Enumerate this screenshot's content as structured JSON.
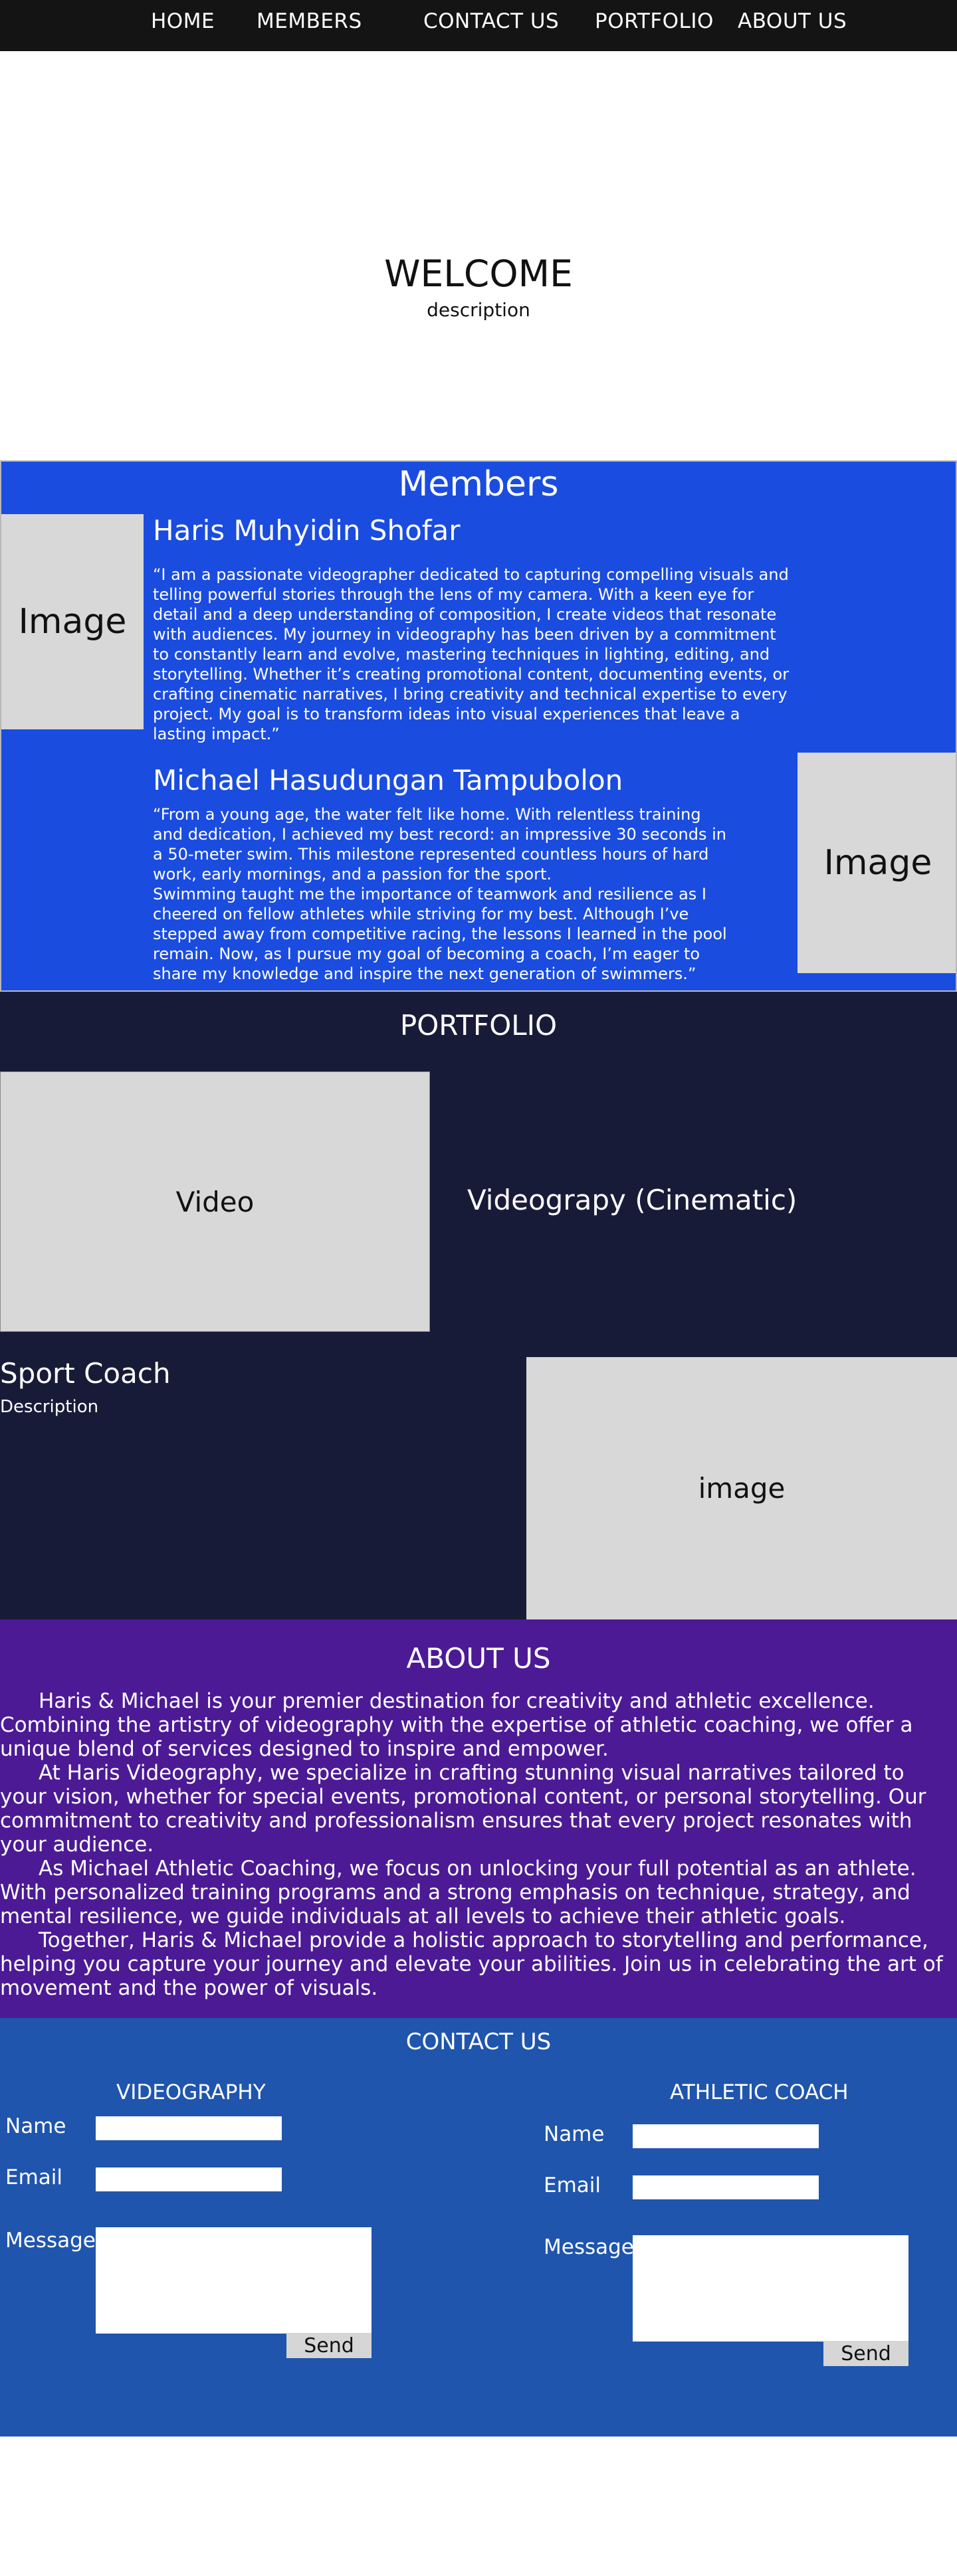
{
  "nav": {
    "items": [
      {
        "label": "HOME"
      },
      {
        "label": "MEMBERS"
      },
      {
        "label": "CONTACT US"
      },
      {
        "label": "PORTFOLIO"
      },
      {
        "label": "ABOUT US"
      }
    ]
  },
  "hero": {
    "title": "WELCOME",
    "description": "description"
  },
  "members": {
    "title": "Members",
    "list": [
      {
        "image_label": "Image",
        "name": "Haris Muhyidin Shofar",
        "bio": "“I am a passionate videographer dedicated to capturing compelling visuals and telling powerful stories through the lens of my camera. With a keen eye for detail and a deep understanding of composition, I create videos that resonate with audiences. My journey in videography has been driven by a commitment to constantly learn and evolve, mastering techniques in lighting, editing, and storytelling. Whether it’s creating promotional content, documenting events, or crafting cinematic narratives, I bring creativity and technical expertise to every project. My goal is to transform ideas into visual experiences that leave a lasting impact.”"
      },
      {
        "image_label": "Image",
        "name": "Michael Hasudungan Tampubolon",
        "bio": "“From a young age, the water felt like home. With relentless training and dedication, I achieved my best record: an impressive 30 seconds in a 50-meter swim. This milestone represented countless hours of hard work, early mornings, and a passion for the sport.",
        "bio2": "Swimming taught me the importance of teamwork and resilience as I cheered on fellow athletes while striving for my best. Although I’ve stepped away from competitive racing, the lessons I learned in the pool remain. Now, as I pursue my goal of becoming a coach, I’m eager to share my knowledge and inspire the next generation of swimmers.”"
      }
    ]
  },
  "portfolio": {
    "title": "PORTFOLIO",
    "video_label": "Video",
    "videography_title": "Videograpy (Cinematic)",
    "coach_title": "Sport Coach",
    "coach_description": "Description",
    "coach_image_label": "image"
  },
  "about": {
    "title": "ABOUT US",
    "paragraphs": [
      "Haris & Michael is your premier destination for creativity and athletic excellence. Combining the artistry of videography with the expertise of athletic coaching, we offer a unique blend of services designed to inspire and empower.",
      "At Haris Videography, we specialize in crafting stunning visual narratives tailored to your vision, whether for special events, promotional content, or personal storytelling. Our commitment to creativity and professionalism ensures that every project resonates with your audience.",
      "As Michael Athletic Coaching, we focus on unlocking your full potential as an athlete. With personalized training programs and a strong emphasis on technique, strategy, and mental resilience, we guide individuals at all levels to achieve their athletic goals.",
      "Together, Haris & Michael provide a holistic approach to storytelling and performance, helping you capture your journey and elevate your abilities. Join us in celebrating the art of movement and the power of visuals."
    ]
  },
  "contact": {
    "title": "CONTACT US",
    "forms": [
      {
        "title": "VIDEOGRAPHY",
        "name_label": "Name",
        "email_label": "Email",
        "message_label": "Message",
        "send_label": "Send"
      },
      {
        "title": "ATHLETIC COACH",
        "name_label": "Name",
        "email_label": "Email",
        "message_label": "Message",
        "send_label": "Send"
      }
    ]
  },
  "colors": {
    "nav_bg": "#141414",
    "members_bg": "#1a4ce0",
    "portfolio_bg": "#181b38",
    "about_bg": "#4c1a95",
    "contact_bg": "#1f55ad",
    "placeholder_gray": "#d8d8d8"
  }
}
